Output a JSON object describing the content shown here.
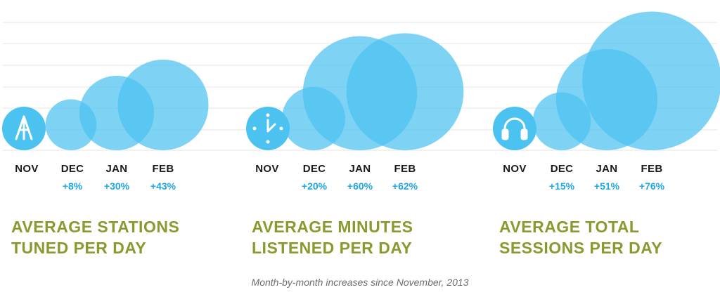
{
  "chart_data": [
    {
      "type": "bubble",
      "title_lines": [
        "AVERAGE STATIONS",
        "TUNED PER DAY"
      ],
      "icon": "radio-tower-icon",
      "categories": [
        "NOV",
        "DEC",
        "JAN",
        "FEB"
      ],
      "increase_labels": [
        "",
        "+8%",
        "+30%",
        "+43%"
      ],
      "values": [
        1.0,
        1.08,
        1.3,
        1.43
      ]
    },
    {
      "type": "bubble",
      "title_lines": [
        "AVERAGE MINUTES",
        "LISTENED PER DAY"
      ],
      "icon": "clock-icon",
      "categories": [
        "NOV",
        "DEC",
        "JAN",
        "FEB"
      ],
      "increase_labels": [
        "",
        "+20%",
        "+60%",
        "+62%"
      ],
      "values": [
        1.0,
        1.2,
        1.6,
        1.62
      ]
    },
    {
      "type": "bubble",
      "title_lines": [
        "AVERAGE TOTAL",
        "SESSIONS PER DAY"
      ],
      "icon": "headphones-icon",
      "categories": [
        "NOV",
        "DEC",
        "JAN",
        "FEB"
      ],
      "increase_labels": [
        "",
        "+15%",
        "+51%",
        "+76%"
      ],
      "values": [
        1.0,
        1.15,
        1.51,
        1.76
      ]
    }
  ],
  "caption": "Month-by-month increases since November, 2013",
  "colors": {
    "bubble": "#4cc2f1",
    "accent": "#1ea7e6",
    "title": "#8a9a2f",
    "grid": "#e6e6e6"
  }
}
